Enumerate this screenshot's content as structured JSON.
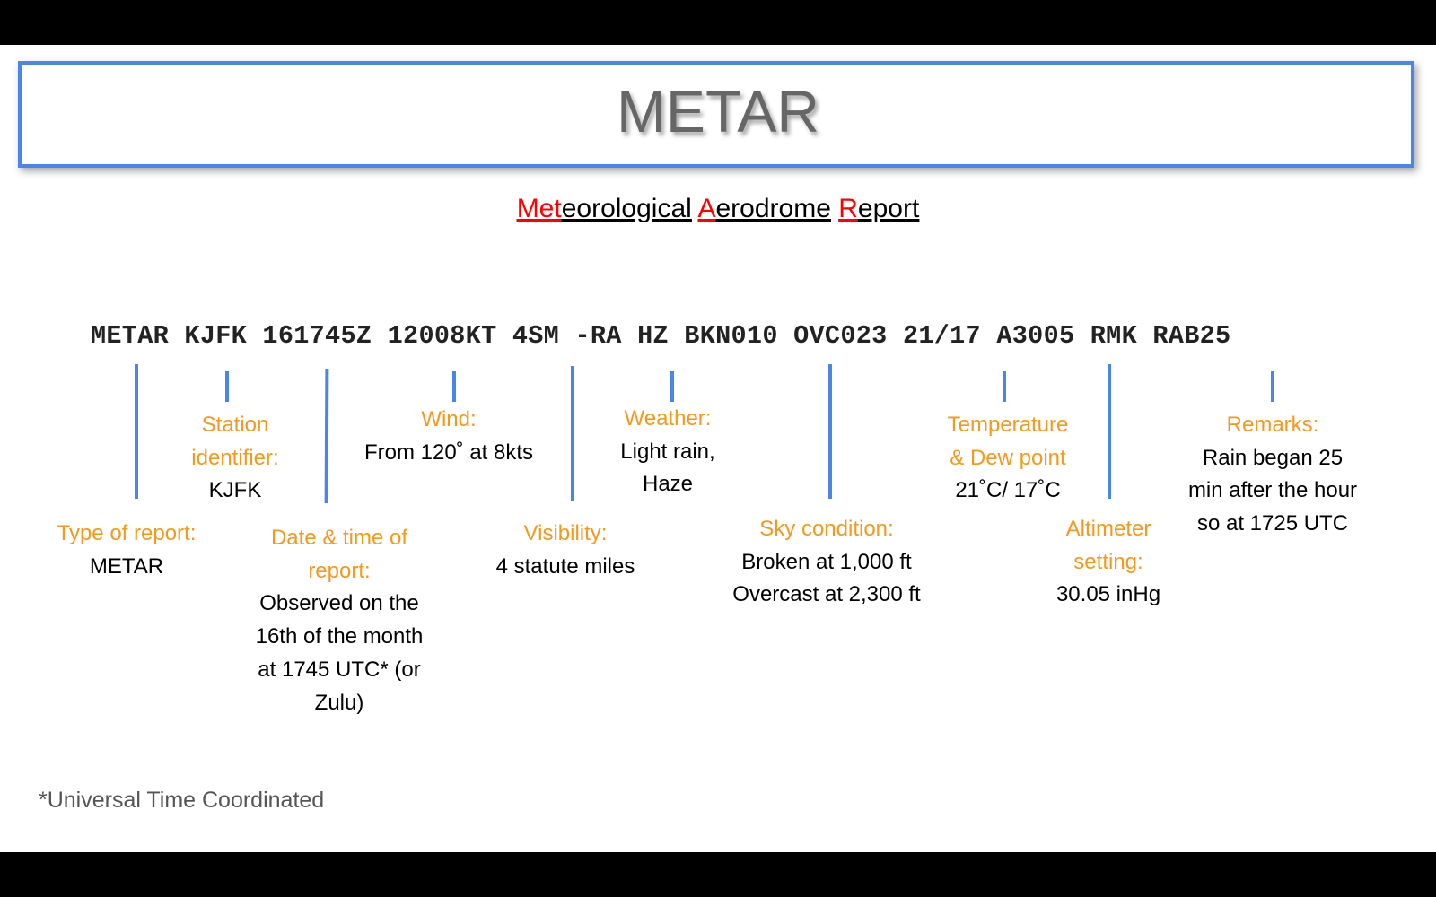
{
  "title": "METAR",
  "subtitle": {
    "parts": [
      {
        "red": "Met",
        "rest": "eorological"
      },
      {
        "red": "A",
        "rest": "erodrome"
      },
      {
        "red": "R",
        "rest": "eport"
      }
    ]
  },
  "code": "METAR KJFK 161745Z 12008KT 4SM -RA HZ BKN010 OVC023 21/17 A3005 RMK RAB25",
  "annotations": {
    "type": {
      "label": "Type of report:",
      "value": "METAR"
    },
    "station": {
      "label": [
        "Station",
        "identifier:"
      ],
      "value": "KJFK"
    },
    "datetime": {
      "label": [
        "Date & time of",
        "report:"
      ],
      "value": [
        "Observed on the",
        "16th of the month",
        "at 1745 UTC* (or",
        "Zulu)"
      ]
    },
    "wind": {
      "label": "Wind:",
      "value": "From 120˚ at 8kts"
    },
    "visibility": {
      "label": "Visibility:",
      "value": "4 statute miles"
    },
    "weather": {
      "label": "Weather:",
      "value": [
        "Light rain,",
        "Haze"
      ]
    },
    "sky": {
      "label": "Sky condition:",
      "value": [
        "Broken at 1,000 ft",
        "Overcast at 2,300 ft"
      ]
    },
    "temperature": {
      "label": [
        "Temperature",
        "& Dew point"
      ],
      "value": "21˚C/ 17˚C"
    },
    "altimeter": {
      "label": [
        "Altimeter",
        "setting:"
      ],
      "value": "30.05 inHg"
    },
    "remarks": {
      "label": "Remarks:",
      "value": [
        "Rain began 25",
        "min after the hour",
        "so at 1725 UTC"
      ]
    }
  },
  "footnote": "*Universal Time Coordinated",
  "colors": {
    "accent": "#4a86e8",
    "label": "#f39a1e",
    "highlight": "#ff0000"
  }
}
